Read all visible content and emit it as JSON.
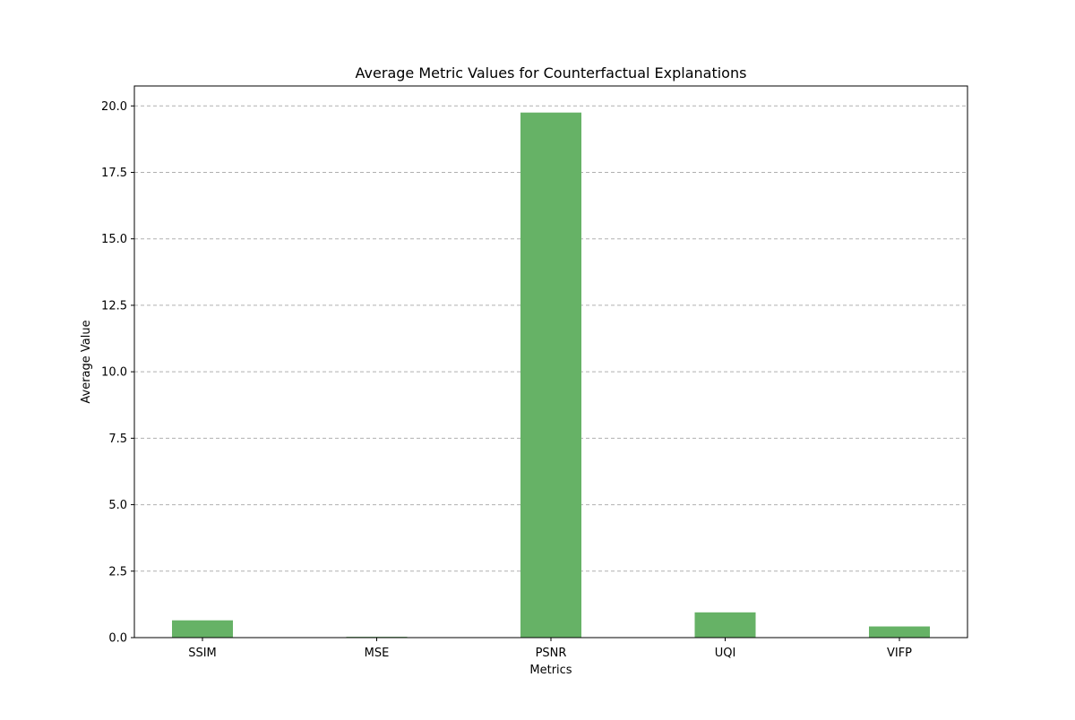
{
  "chart_data": {
    "type": "bar",
    "title": "Average Metric Values for Counterfactual Explanations",
    "xlabel": "Metrics",
    "ylabel": "Average Value",
    "categories": [
      "SSIM",
      "MSE",
      "PSNR",
      "UQI",
      "VIFP"
    ],
    "values": [
      0.65,
      0.03,
      19.75,
      0.95,
      0.42
    ],
    "ylim": [
      0,
      20.75
    ],
    "yticks": [
      0.0,
      2.5,
      5.0,
      7.5,
      10.0,
      12.5,
      15.0,
      17.5,
      20.0
    ],
    "ytick_labels": [
      "0.0",
      "2.5",
      "5.0",
      "7.5",
      "10.0",
      "12.5",
      "15.0",
      "17.5",
      "20.0"
    ],
    "grid": "horizontal-dashed",
    "bar_color": "#66b266",
    "grid_color": "#b0b0b0"
  }
}
